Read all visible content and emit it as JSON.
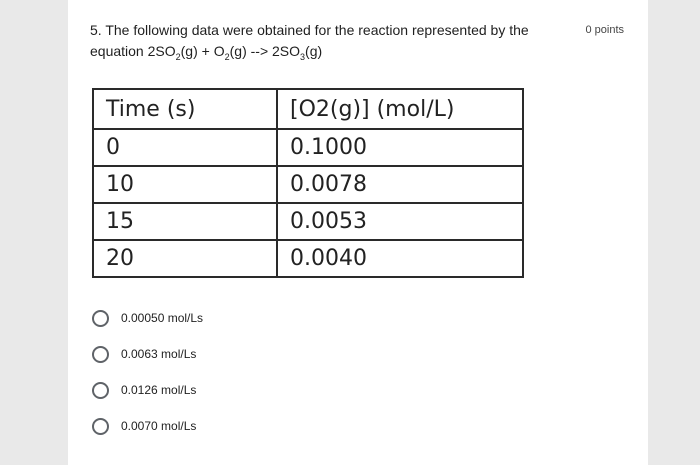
{
  "question": {
    "line1": "5. The following data were obtained for the reaction represented by the",
    "line2_prefix": "equation 2SO",
    "line2_a": "(g)  +  O",
    "line2_b": "(g)  -->  2SO",
    "line2_c": "(g)",
    "sub_2a": "2",
    "sub_2b": "2",
    "sub_3": "3"
  },
  "points": "0 points",
  "table": {
    "headers": [
      "Time (s)",
      "[O2(g)] (mol/L)"
    ],
    "rows": [
      [
        "0",
        "0.1000"
      ],
      [
        "10",
        "0.0078"
      ],
      [
        "15",
        "0.0053"
      ],
      [
        "20",
        "0.0040"
      ]
    ]
  },
  "options": [
    "0.00050 mol/Ls",
    "0.0063 mol/Ls",
    "0.0126 mol/Ls",
    "0.0070 mol/Ls"
  ]
}
